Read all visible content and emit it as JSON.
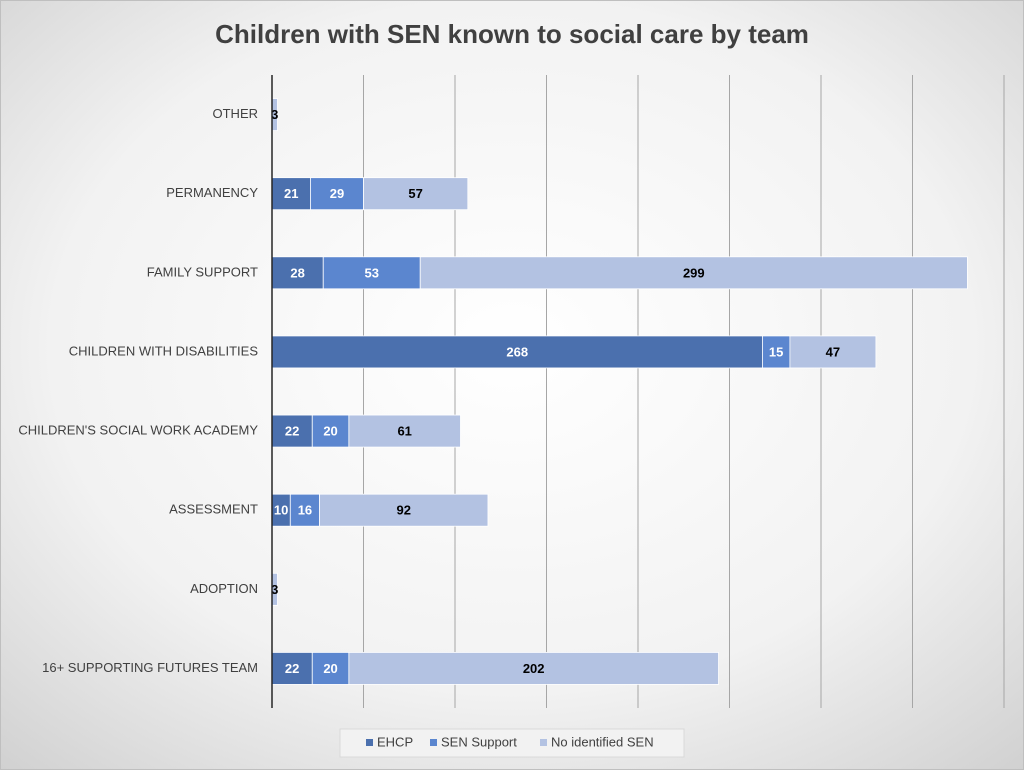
{
  "chart_data": {
    "type": "stacked-bar-horizontal",
    "title": "Children with SEN known to social care by team",
    "categories": [
      "OTHER",
      "PERMANENCY",
      "FAMILY SUPPORT",
      "CHILDREN WITH DISABILITIES",
      "CHILDREN'S SOCIAL WORK ACADEMY",
      "ASSESSMENT",
      "ADOPTION",
      "16+ SUPPORTING FUTURES TEAM"
    ],
    "series": [
      {
        "name": "EHCP",
        "color": "#4b70ae",
        "values": [
          null,
          21,
          28,
          268,
          22,
          10,
          null,
          22
        ]
      },
      {
        "name": "SEN Support",
        "color": "#5b86cf",
        "values": [
          null,
          29,
          53,
          15,
          20,
          16,
          null,
          20
        ]
      },
      {
        "name": "No identified SEN",
        "color": "#b3c2e2",
        "values": [
          3,
          57,
          299,
          47,
          61,
          92,
          3,
          202
        ]
      }
    ],
    "xlim": [
      0,
      400
    ],
    "xticks": [
      0,
      50,
      100,
      150,
      200,
      250,
      300,
      350,
      400
    ],
    "grid": true,
    "legend": "bottom"
  }
}
